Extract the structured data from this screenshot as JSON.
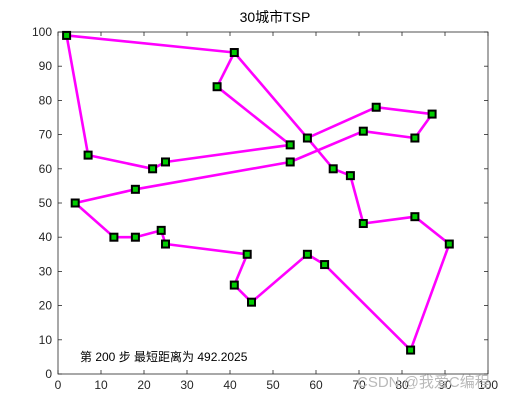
{
  "chart_data": {
    "type": "line",
    "title": "30城市TSP",
    "xlabel": "",
    "ylabel": "",
    "xlim": [
      0,
      100
    ],
    "ylim": [
      0,
      100
    ],
    "xticks": [
      "0",
      "10",
      "20",
      "30",
      "40",
      "50",
      "60",
      "70",
      "80",
      "90",
      "100"
    ],
    "yticks": [
      "0",
      "10",
      "20",
      "30",
      "40",
      "50",
      "60",
      "70",
      "80",
      "90",
      "100"
    ],
    "grid": false,
    "route_color": "#ff00ff",
    "marker_color": "#00cc00",
    "marker_edge": "#000000",
    "route": [
      {
        "x": 2,
        "y": 99
      },
      {
        "x": 41,
        "y": 94
      },
      {
        "x": 37,
        "y": 84
      },
      {
        "x": 54,
        "y": 67
      },
      {
        "x": 25,
        "y": 62
      },
      {
        "x": 22,
        "y": 60
      },
      {
        "x": 7,
        "y": 64
      },
      {
        "x": 2,
        "y": 99
      }
    ],
    "route2": [
      {
        "x": 58,
        "y": 69
      },
      {
        "x": 74,
        "y": 78
      },
      {
        "x": 87,
        "y": 76
      },
      {
        "x": 83,
        "y": 69
      },
      {
        "x": 71,
        "y": 71
      },
      {
        "x": 54,
        "y": 62
      },
      {
        "x": 18,
        "y": 54
      },
      {
        "x": 4,
        "y": 50
      },
      {
        "x": 13,
        "y": 40
      },
      {
        "x": 18,
        "y": 40
      },
      {
        "x": 24,
        "y": 42
      },
      {
        "x": 25,
        "y": 38
      },
      {
        "x": 44,
        "y": 35
      },
      {
        "x": 41,
        "y": 26
      },
      {
        "x": 45,
        "y": 21
      },
      {
        "x": 58,
        "y": 35
      },
      {
        "x": 62,
        "y": 32
      },
      {
        "x": 82,
        "y": 7
      },
      {
        "x": 91,
        "y": 38
      },
      {
        "x": 83,
        "y": 46
      },
      {
        "x": 71,
        "y": 44
      },
      {
        "x": 68,
        "y": 58
      },
      {
        "x": 64,
        "y": 60
      },
      {
        "x": 58,
        "y": 69
      },
      {
        "x": 41,
        "y": 94
      }
    ],
    "annotation": "第 200 步  最短距离为 492.2025"
  },
  "watermark": "CSDN @我爱C编程"
}
